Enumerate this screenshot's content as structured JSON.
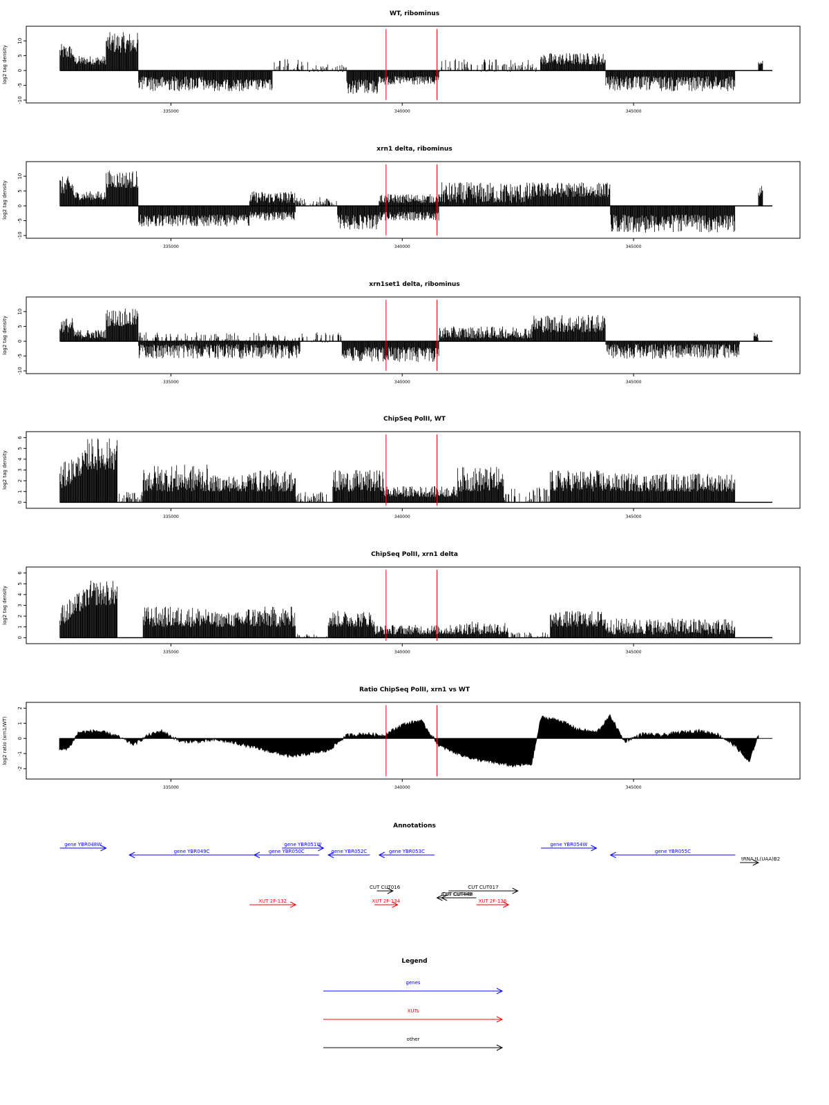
{
  "chart_data": [
    {
      "type": "bar",
      "title": "WT, ribominus",
      "ylabel": "log2 tag density",
      "ylim": [
        -10,
        14
      ],
      "yticks": [
        -10,
        -5,
        0,
        5,
        10
      ],
      "xlim": [
        332500,
        348000
      ],
      "xticks": [
        335000,
        340000,
        345000
      ],
      "markers": [
        339650,
        340750
      ],
      "segments": [
        {
          "x": [
            332600,
            332900
          ],
          "y": [
            4,
            9
          ],
          "kind": "pos"
        },
        {
          "x": [
            332900,
            333600
          ],
          "y": [
            2,
            5
          ],
          "kind": "pos"
        },
        {
          "x": [
            333600,
            334300
          ],
          "y": [
            6,
            13
          ],
          "kind": "pos"
        },
        {
          "x": [
            334300,
            335700
          ],
          "y": [
            -2,
            -7
          ],
          "kind": "neg"
        },
        {
          "x": [
            335700,
            337200
          ],
          "y": [
            -3,
            -7
          ],
          "kind": "neg"
        },
        {
          "x": [
            337200,
            338000
          ],
          "y": [
            -0.5,
            4
          ],
          "kind": "sparse"
        },
        {
          "x": [
            338000,
            338800
          ],
          "y": [
            -0.5,
            2
          ],
          "kind": "sparse"
        },
        {
          "x": [
            338800,
            339500
          ],
          "y": [
            -3,
            -8
          ],
          "kind": "neg"
        },
        {
          "x": [
            339500,
            340800
          ],
          "y": [
            -2,
            -5
          ],
          "kind": "neg"
        },
        {
          "x": [
            340800,
            343000
          ],
          "y": [
            -0.5,
            4
          ],
          "kind": "sparse"
        },
        {
          "x": [
            343000,
            344400
          ],
          "y": [
            2,
            6
          ],
          "kind": "pos"
        },
        {
          "x": [
            344400,
            347200
          ],
          "y": [
            -2,
            -7
          ],
          "kind": "neg"
        },
        {
          "x": [
            347700,
            347800
          ],
          "y": [
            2,
            4
          ],
          "kind": "pos"
        }
      ]
    },
    {
      "type": "bar",
      "title": "xrn1 delta, ribominus",
      "ylabel": "log2 tag density",
      "ylim": [
        -10,
        14
      ],
      "yticks": [
        -10,
        -5,
        0,
        5,
        10
      ],
      "xlim": [
        332500,
        348000
      ],
      "xticks": [
        335000,
        340000,
        345000
      ],
      "markers": [
        339650,
        340750
      ],
      "segments": [
        {
          "x": [
            332600,
            332900
          ],
          "y": [
            4,
            10
          ],
          "kind": "pos"
        },
        {
          "x": [
            332900,
            333600
          ],
          "y": [
            2,
            5
          ],
          "kind": "pos"
        },
        {
          "x": [
            333600,
            334300
          ],
          "y": [
            6,
            12
          ],
          "kind": "pos"
        },
        {
          "x": [
            334300,
            336700
          ],
          "y": [
            -3,
            -7
          ],
          "kind": "neg"
        },
        {
          "x": [
            336700,
            337700
          ],
          "y": [
            1,
            5
          ],
          "kind": "pos"
        },
        {
          "x": [
            336700,
            337700
          ],
          "y": [
            -2,
            -5
          ],
          "kind": "neg"
        },
        {
          "x": [
            337700,
            338600
          ],
          "y": [
            0.5,
            3
          ],
          "kind": "sparse"
        },
        {
          "x": [
            338600,
            339500
          ],
          "y": [
            -3,
            -8
          ],
          "kind": "neg"
        },
        {
          "x": [
            339500,
            340800
          ],
          "y": [
            1,
            4
          ],
          "kind": "pos"
        },
        {
          "x": [
            339500,
            340800
          ],
          "y": [
            -2,
            -5
          ],
          "kind": "neg"
        },
        {
          "x": [
            340800,
            342800
          ],
          "y": [
            1,
            8
          ],
          "kind": "pos"
        },
        {
          "x": [
            342800,
            344500
          ],
          "y": [
            3,
            8
          ],
          "kind": "pos"
        },
        {
          "x": [
            344500,
            347200
          ],
          "y": [
            -3,
            -9
          ],
          "kind": "neg"
        },
        {
          "x": [
            347700,
            347800
          ],
          "y": [
            3,
            8
          ],
          "kind": "pos"
        }
      ]
    },
    {
      "type": "bar",
      "title": "xrn1set1 delta, ribominus",
      "ylabel": "log2 tag density",
      "ylim": [
        -10,
        14
      ],
      "yticks": [
        -10,
        -5,
        0,
        5,
        10
      ],
      "xlim": [
        332500,
        348000
      ],
      "xticks": [
        335000,
        340000,
        345000
      ],
      "markers": [
        339650,
        340750
      ],
      "segments": [
        {
          "x": [
            332600,
            332900
          ],
          "y": [
            3,
            8
          ],
          "kind": "pos"
        },
        {
          "x": [
            332900,
            333600
          ],
          "y": [
            1,
            4
          ],
          "kind": "pos"
        },
        {
          "x": [
            333600,
            334300
          ],
          "y": [
            5,
            11
          ],
          "kind": "pos"
        },
        {
          "x": [
            334300,
            337800
          ],
          "y": [
            -1,
            -6
          ],
          "kind": "neg"
        },
        {
          "x": [
            334300,
            337800
          ],
          "y": [
            -0.5,
            3
          ],
          "kind": "sparse"
        },
        {
          "x": [
            337800,
            338700
          ],
          "y": [
            -0.5,
            3
          ],
          "kind": "sparse"
        },
        {
          "x": [
            338700,
            340800
          ],
          "y": [
            -2,
            -7
          ],
          "kind": "neg"
        },
        {
          "x": [
            340800,
            342800
          ],
          "y": [
            1,
            5
          ],
          "kind": "pos"
        },
        {
          "x": [
            342800,
            344400
          ],
          "y": [
            3,
            9
          ],
          "kind": "pos"
        },
        {
          "x": [
            344400,
            347300
          ],
          "y": [
            -1,
            -6
          ],
          "kind": "neg"
        },
        {
          "x": [
            347600,
            347700
          ],
          "y": [
            1,
            3
          ],
          "kind": "pos"
        }
      ]
    },
    {
      "type": "bar",
      "title": "ChipSeq PolII, WT",
      "ylabel": "log2 tag density",
      "ylim": [
        -0.3,
        6.3
      ],
      "yticks": [
        0,
        1,
        2,
        3,
        4,
        5,
        6
      ],
      "xlim": [
        332500,
        348000
      ],
      "xticks": [
        335000,
        340000,
        345000
      ],
      "markers": [
        339650,
        340750
      ],
      "segments": [
        {
          "x": [
            332600,
            333200
          ],
          "y": [
            1,
            3.5
          ],
          "kind": "ramp",
          "end": 5
        },
        {
          "x": [
            333200,
            333850
          ],
          "y": [
            3,
            6
          ],
          "kind": "pos"
        },
        {
          "x": [
            333850,
            334400
          ],
          "y": [
            0,
            1
          ],
          "kind": "sparse"
        },
        {
          "x": [
            334400,
            335800
          ],
          "y": [
            1,
            3.5
          ],
          "kind": "pos"
        },
        {
          "x": [
            335800,
            336600
          ],
          "y": [
            1,
            2.5
          ],
          "kind": "pos"
        },
        {
          "x": [
            336600,
            337700
          ],
          "y": [
            1,
            3
          ],
          "kind": "pos"
        },
        {
          "x": [
            337700,
            338500
          ],
          "y": [
            0,
            1
          ],
          "kind": "sparse"
        },
        {
          "x": [
            338500,
            339600
          ],
          "y": [
            1,
            3
          ],
          "kind": "pos"
        },
        {
          "x": [
            339600,
            341200
          ],
          "y": [
            0.5,
            1.5
          ],
          "kind": "pos"
        },
        {
          "x": [
            341200,
            342200
          ],
          "y": [
            1,
            3.3
          ],
          "kind": "pos"
        },
        {
          "x": [
            342200,
            343200
          ],
          "y": [
            0,
            1.5
          ],
          "kind": "sparse"
        },
        {
          "x": [
            343200,
            344400
          ],
          "y": [
            1,
            3
          ],
          "kind": "pos"
        },
        {
          "x": [
            344400,
            347200
          ],
          "y": [
            1,
            2.7
          ],
          "kind": "pos"
        }
      ]
    },
    {
      "type": "bar",
      "title": "ChipSeq PolII, xrn1 delta",
      "ylabel": "log2 tag density",
      "ylim": [
        -0.3,
        6.3
      ],
      "yticks": [
        0,
        1,
        2,
        3,
        4,
        5,
        6
      ],
      "xlim": [
        332500,
        348000
      ],
      "xticks": [
        335000,
        340000,
        345000
      ],
      "markers": [
        339650,
        340750
      ],
      "segments": [
        {
          "x": [
            332600,
            333200
          ],
          "y": [
            1,
            3
          ],
          "kind": "ramp",
          "end": 4.8
        },
        {
          "x": [
            333200,
            333850
          ],
          "y": [
            3,
            5.3
          ],
          "kind": "pos"
        },
        {
          "x": [
            334400,
            335800
          ],
          "y": [
            1,
            2.9
          ],
          "kind": "pos"
        },
        {
          "x": [
            335800,
            336600
          ],
          "y": [
            1,
            2.4
          ],
          "kind": "pos"
        },
        {
          "x": [
            336600,
            337700
          ],
          "y": [
            1,
            2.9
          ],
          "kind": "pos"
        },
        {
          "x": [
            337700,
            338400
          ],
          "y": [
            0,
            0.5
          ],
          "kind": "sparse"
        },
        {
          "x": [
            338400,
            339400
          ],
          "y": [
            1,
            2.5
          ],
          "kind": "pos"
        },
        {
          "x": [
            339400,
            341200
          ],
          "y": [
            0.3,
            1.2
          ],
          "kind": "pos"
        },
        {
          "x": [
            341200,
            342300
          ],
          "y": [
            0.3,
            1.5
          ],
          "kind": "pos"
        },
        {
          "x": [
            342300,
            343200
          ],
          "y": [
            0,
            0.5
          ],
          "kind": "sparse"
        },
        {
          "x": [
            343200,
            344400
          ],
          "y": [
            1,
            2.5
          ],
          "kind": "pos"
        },
        {
          "x": [
            344400,
            347200
          ],
          "y": [
            0.3,
            1.8
          ],
          "kind": "pos"
        }
      ]
    },
    {
      "type": "area",
      "title": "Ratio ChipSeq PolII, xrn1 vs WT",
      "ylabel": "log2 ratio (xrn1/WT)",
      "ylim": [
        -2.5,
        2.2
      ],
      "yticks": [
        -2,
        -1,
        0,
        1,
        2
      ],
      "xlim": [
        332500,
        348000
      ],
      "xticks": [
        335000,
        340000,
        345000
      ],
      "markers": [
        339650,
        340750
      ],
      "x": [
        332600,
        332800,
        333000,
        333400,
        333800,
        334200,
        334500,
        334800,
        335200,
        335600,
        336000,
        336400,
        336800,
        337200,
        337600,
        338000,
        338400,
        338800,
        339200,
        339600,
        340000,
        340400,
        340800,
        341200,
        341600,
        342000,
        342400,
        342800,
        343000,
        343400,
        343800,
        344200,
        344500,
        344800,
        345200,
        345600,
        346000,
        346400,
        346800,
        347200,
        347500,
        347700
      ],
      "y": [
        -0.8,
        -0.6,
        0.4,
        0.5,
        0.2,
        -0.4,
        0.2,
        0.5,
        -0.2,
        -0.2,
        -0.1,
        -0.3,
        -0.6,
        -0.9,
        -1.2,
        -1.0,
        -0.8,
        0.2,
        0.3,
        0.2,
        0.9,
        1.2,
        -0.5,
        -1.0,
        -1.4,
        -1.6,
        -1.8,
        -1.7,
        1.4,
        1.2,
        0.6,
        0.4,
        1.5,
        -0.2,
        0.3,
        0.2,
        0.4,
        0.5,
        0.3,
        -0.5,
        -1.6,
        0.3
      ]
    }
  ],
  "annotations": {
    "title": "Annotations",
    "genes": [
      {
        "label": "gene YBR048W",
        "x1": 332600,
        "x2": 333600,
        "dir": "right",
        "row": 0
      },
      {
        "label": "gene YBR049C",
        "x1": 334100,
        "x2": 336800,
        "dir": "left",
        "row": 1
      },
      {
        "label": "gene YBR050C",
        "x1": 336800,
        "x2": 338200,
        "dir": "left",
        "row": 1
      },
      {
        "label": "gene YBR051W",
        "x1": 337400,
        "x2": 338300,
        "dir": "right",
        "row": 0
      },
      {
        "label": "gene YBR052C",
        "x1": 338400,
        "x2": 339300,
        "dir": "left",
        "row": 1
      },
      {
        "label": "gene YBR053C",
        "x1": 339500,
        "x2": 340700,
        "dir": "left",
        "row": 1
      },
      {
        "label": "gene YBR054W",
        "x1": 343000,
        "x2": 344200,
        "dir": "right",
        "row": 0
      },
      {
        "label": "gene YBR055C",
        "x1": 344500,
        "x2": 347200,
        "dir": "left",
        "row": 1
      }
    ],
    "trna": {
      "label": "tRNA tL(UAA)B2",
      "x1": 347300,
      "x2": 347700,
      "dir": "right"
    },
    "cuts": [
      {
        "label": "CUT CUT016",
        "x1": 339450,
        "x2": 339800,
        "dir": "right",
        "row": 0
      },
      {
        "label": "CUT CUT017",
        "x1": 341000,
        "x2": 342500,
        "dir": "right",
        "row": 0
      },
      {
        "label": "CUT CUT448",
        "x1": 340850,
        "x2": 341550,
        "dir": "left",
        "row": 1
      },
      {
        "label": "CUT CUT449",
        "x1": 340750,
        "x2": 341600,
        "dir": "left",
        "row": 1
      }
    ],
    "xuts": [
      {
        "label": "XUT 2F-132",
        "x1": 336700,
        "x2": 337700,
        "dir": "right"
      },
      {
        "label": "XUT 2F-134",
        "x1": 339400,
        "x2": 339900,
        "dir": "right"
      },
      {
        "label": "XUT 2F-136",
        "x1": 341600,
        "x2": 342300,
        "dir": "right"
      }
    ]
  },
  "legend": {
    "title": "Legend",
    "items": [
      {
        "label": "genes",
        "color": "#0000ff"
      },
      {
        "label": "XUTs",
        "color": "#ff0000"
      },
      {
        "label": "other",
        "color": "#000000"
      }
    ]
  },
  "colors": {
    "gene": "#0000ff",
    "xut": "#ff0000",
    "other": "#000000",
    "marker": "#ff0000",
    "bars": "#000000",
    "frame": "#000000",
    "background": "#ffffff"
  }
}
